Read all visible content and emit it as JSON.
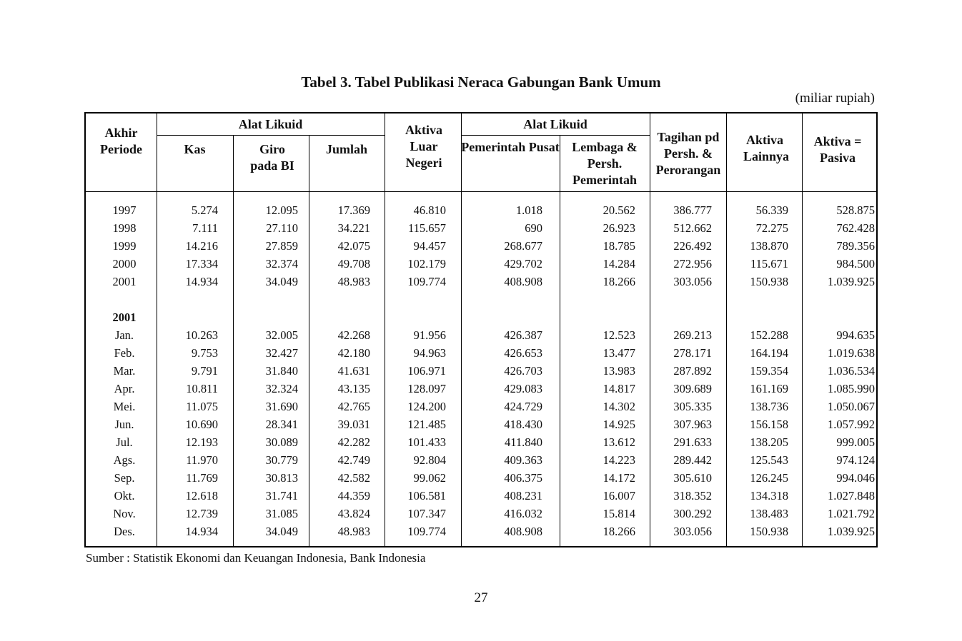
{
  "title": "Tabel 3. Tabel Publikasi Neraca Gabungan Bank Umum",
  "unit": "(miliar rupiah)",
  "headers": {
    "periode": "Akhir Periode",
    "alat_likuid_1": "Alat Likuid",
    "kas": "Kas",
    "giro": "Giro pada BI",
    "jumlah": "Jumlah",
    "aktiva_luar": "Aktiva Luar Negeri",
    "alat_likuid_2": "Alat Likuid",
    "pemerintah": "Pemerintah Pusat",
    "lembaga": "Lembaga & Persh. Pemerintah",
    "tagihan": "Tagihan pd Persh. & Perorangan",
    "aktiva_lain": "Aktiva Lainnya",
    "aktiva_pasiva": "Aktiva = Pasiva"
  },
  "annual_rows": [
    [
      "1997",
      "5.274",
      "12.095",
      "17.369",
      "46.810",
      "1.018",
      "20.562",
      "386.777",
      "56.339",
      "528.875"
    ],
    [
      "1998",
      "7.111",
      "27.110",
      "34.221",
      "115.657",
      "690",
      "26.923",
      "512.662",
      "72.275",
      "762.428"
    ],
    [
      "1999",
      "14.216",
      "27.859",
      "42.075",
      "94.457",
      "268.677",
      "18.785",
      "226.492",
      "138.870",
      "789.356"
    ],
    [
      "2000",
      "17.334",
      "32.374",
      "49.708",
      "102.179",
      "429.702",
      "14.284",
      "272.956",
      "115.671",
      "984.500"
    ],
    [
      "2001",
      "14.934",
      "34.049",
      "48.983",
      "109.774",
      "408.908",
      "18.266",
      "303.056",
      "150.938",
      "1.039.925"
    ]
  ],
  "monthly_year": "2001",
  "monthly_rows": [
    [
      "Jan.",
      "10.263",
      "32.005",
      "42.268",
      "91.956",
      "426.387",
      "12.523",
      "269.213",
      "152.288",
      "994.635"
    ],
    [
      "Feb.",
      "9.753",
      "32.427",
      "42.180",
      "94.963",
      "426.653",
      "13.477",
      "278.171",
      "164.194",
      "1.019.638"
    ],
    [
      "Mar.",
      "9.791",
      "31.840",
      "41.631",
      "106.971",
      "426.703",
      "13.983",
      "287.892",
      "159.354",
      "1.036.534"
    ],
    [
      "Apr.",
      "10.811",
      "32.324",
      "43.135",
      "128.097",
      "429.083",
      "14.817",
      "309.689",
      "161.169",
      "1.085.990"
    ],
    [
      "Mei.",
      "11.075",
      "31.690",
      "42.765",
      "124.200",
      "424.729",
      "14.302",
      "305.335",
      "138.736",
      "1.050.067"
    ],
    [
      "Jun.",
      "10.690",
      "28.341",
      "39.031",
      "121.485",
      "418.430",
      "14.925",
      "307.963",
      "156.158",
      "1.057.992"
    ],
    [
      "Jul.",
      "12.193",
      "30.089",
      "42.282",
      "101.433",
      "411.840",
      "13.612",
      "291.633",
      "138.205",
      "999.005"
    ],
    [
      "Ags.",
      "11.970",
      "30.779",
      "42.749",
      "92.804",
      "409.363",
      "14.223",
      "289.442",
      "125.543",
      "974.124"
    ],
    [
      "Sep.",
      "11.769",
      "30.813",
      "42.582",
      "99.062",
      "406.375",
      "14.172",
      "305.610",
      "126.245",
      "994.046"
    ],
    [
      "Okt.",
      "12.618",
      "31.741",
      "44.359",
      "106.581",
      "408.231",
      "16.007",
      "318.352",
      "134.318",
      "1.027.848"
    ],
    [
      "Nov.",
      "12.739",
      "31.085",
      "43.824",
      "107.347",
      "416.032",
      "15.814",
      "300.292",
      "138.483",
      "1.021.792"
    ],
    [
      "Des.",
      "14.934",
      "34.049",
      "48.983",
      "109.774",
      "408.908",
      "18.266",
      "303.056",
      "150.938",
      "1.039.925"
    ]
  ],
  "source": "Sumber : Statistik Ekonomi dan Keuangan Indonesia, Bank Indonesia",
  "page_number": "27"
}
